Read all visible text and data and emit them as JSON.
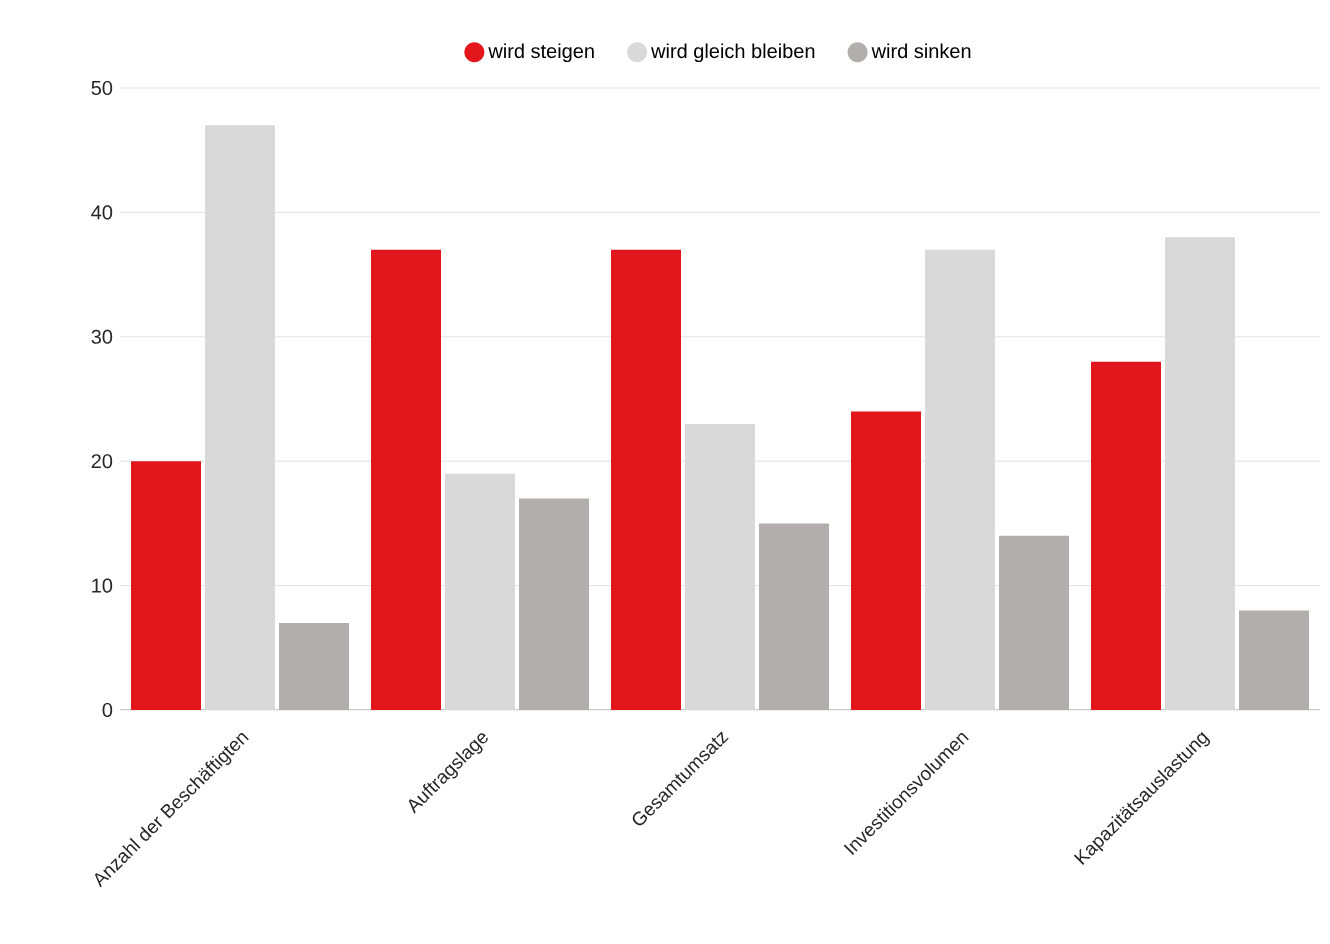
{
  "chart_data": {
    "type": "bar",
    "categories": [
      "Anzahl der Beschäftigten",
      "Auftragslage",
      "Gesamtumsatz",
      "Investitionsvolumen",
      "Kapazitätsauslastung"
    ],
    "series": [
      {
        "name": "wird steigen",
        "color": "#e3161b",
        "values": [
          20,
          37,
          37,
          24,
          28
        ]
      },
      {
        "name": "wird gleich bleiben",
        "color": "#d9d9d9",
        "values": [
          47,
          19,
          23,
          37,
          38
        ]
      },
      {
        "name": "wird sinken",
        "color": "#b3aeae",
        "values": [
          7,
          17,
          15,
          14,
          8
        ]
      }
    ],
    "ylim": [
      0,
      50
    ],
    "yticks": [
      0,
      10,
      20,
      30,
      40,
      50
    ],
    "grid": "y",
    "legend": "top"
  }
}
